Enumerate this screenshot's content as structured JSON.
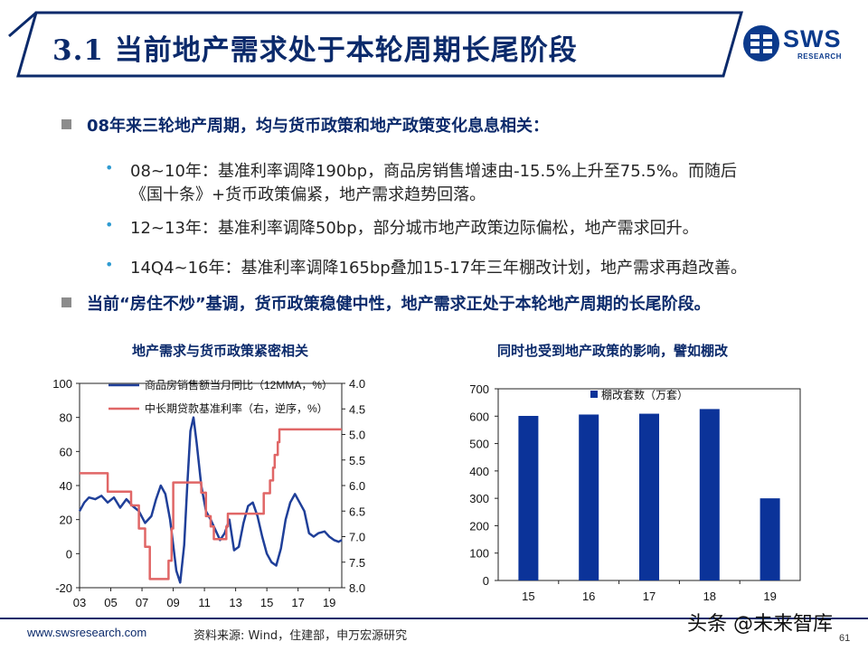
{
  "header": {
    "title": "3.1 当前地产需求处于本轮周期长尾阶段",
    "logo_text": "SWS",
    "logo_sub": "RESEARCH"
  },
  "bullets": {
    "b1": "08年来三轮地产周期，均与货币政策和地产政策变化息息相关：",
    "s1_line1": "08~10年：基准利率调降190bp，商品房销售增速由-15.5%上升至75.5%。而随后",
    "s1_line2": "《国十条》+货币政策偏紧，地产需求趋势回落。",
    "s2": "12~13年：基准利率调降50bp，部分城市地产政策边际偏松，地产需求回升。",
    "s3": "14Q4~16年：基准利率调降165bp叠加15-17年三年棚改计划，地产需求再趋改善。",
    "b2": "当前“房住不炒”基调，货币政策稳健中性，地产需求正处于本轮地产周期的长尾阶段。",
    "dot": "•"
  },
  "colors": {
    "navy": "#0b2a6b",
    "series_blue": "#1f3f99",
    "series_red": "#e06666",
    "bar": "#0b3399",
    "bullet_dot": "#2f9bd1"
  },
  "chart_data": [
    {
      "type": "line",
      "title": "地产需求与货币政策紧密相关",
      "x_tick_labels": [
        "03",
        "05",
        "07",
        "09",
        "11",
        "13",
        "15",
        "17",
        "19"
      ],
      "x_range": [
        2003,
        2019.8
      ],
      "left_axis": {
        "ylim": [
          -20,
          100
        ],
        "ticks": [
          "100",
          "80",
          "60",
          "40",
          "20",
          "0",
          "-20"
        ]
      },
      "right_axis": {
        "ylim": [
          4.0,
          8.0
        ],
        "inverted": true,
        "ticks": [
          "4.0",
          "4.5",
          "5.0",
          "5.5",
          "6.0",
          "6.5",
          "7.0",
          "7.5",
          "8.0"
        ]
      },
      "legend_position": "top",
      "series": [
        {
          "name": "商品房销售额当月同比（12MMA，%）",
          "axis": "left",
          "points": [
            [
              2003.0,
              25
            ],
            [
              2003.3,
              30
            ],
            [
              2003.6,
              33
            ],
            [
              2004.0,
              32
            ],
            [
              2004.4,
              34
            ],
            [
              2004.8,
              30
            ],
            [
              2005.2,
              33
            ],
            [
              2005.6,
              27
            ],
            [
              2006.0,
              32
            ],
            [
              2006.4,
              28
            ],
            [
              2006.8,
              25
            ],
            [
              2007.2,
              18
            ],
            [
              2007.6,
              22
            ],
            [
              2007.9,
              32
            ],
            [
              2008.2,
              40
            ],
            [
              2008.5,
              35
            ],
            [
              2008.8,
              20
            ],
            [
              2009.0,
              5
            ],
            [
              2009.2,
              -10
            ],
            [
              2009.45,
              -17
            ],
            [
              2009.7,
              5
            ],
            [
              2009.9,
              40
            ],
            [
              2010.1,
              72
            ],
            [
              2010.3,
              80
            ],
            [
              2010.5,
              65
            ],
            [
              2010.8,
              40
            ],
            [
              2011.1,
              25
            ],
            [
              2011.4,
              20
            ],
            [
              2011.7,
              14
            ],
            [
              2012.0,
              8
            ],
            [
              2012.3,
              12
            ],
            [
              2012.6,
              20
            ],
            [
              2012.9,
              2
            ],
            [
              2013.2,
              4
            ],
            [
              2013.5,
              18
            ],
            [
              2013.8,
              28
            ],
            [
              2014.1,
              30
            ],
            [
              2014.4,
              22
            ],
            [
              2014.7,
              10
            ],
            [
              2015.0,
              0
            ],
            [
              2015.3,
              -5
            ],
            [
              2015.6,
              -7
            ],
            [
              2015.9,
              3
            ],
            [
              2016.2,
              20
            ],
            [
              2016.5,
              30
            ],
            [
              2016.8,
              35
            ],
            [
              2017.1,
              30
            ],
            [
              2017.4,
              25
            ],
            [
              2017.7,
              12
            ],
            [
              2018.0,
              10
            ],
            [
              2018.3,
              12
            ],
            [
              2018.7,
              13
            ],
            [
              2019.0,
              10
            ],
            [
              2019.3,
              8
            ],
            [
              2019.6,
              7
            ],
            [
              2019.8,
              8
            ]
          ]
        },
        {
          "name": "中长期贷款基准利率（右，逆序，%）",
          "axis": "right",
          "points": [
            [
              2003.0,
              5.76
            ],
            [
              2004.8,
              5.76
            ],
            [
              2004.8,
              6.12
            ],
            [
              2006.3,
              6.12
            ],
            [
              2006.3,
              6.39
            ],
            [
              2006.8,
              6.39
            ],
            [
              2006.8,
              6.84
            ],
            [
              2007.2,
              6.84
            ],
            [
              2007.2,
              7.2
            ],
            [
              2007.5,
              7.2
            ],
            [
              2007.5,
              7.83
            ],
            [
              2008.7,
              7.83
            ],
            [
              2008.7,
              7.47
            ],
            [
              2008.9,
              7.47
            ],
            [
              2008.9,
              6.84
            ],
            [
              2009.0,
              6.84
            ],
            [
              2009.0,
              5.94
            ],
            [
              2010.8,
              5.94
            ],
            [
              2010.8,
              6.14
            ],
            [
              2011.1,
              6.14
            ],
            [
              2011.1,
              6.6
            ],
            [
              2011.4,
              6.6
            ],
            [
              2011.4,
              6.8
            ],
            [
              2011.6,
              6.8
            ],
            [
              2011.6,
              7.05
            ],
            [
              2012.4,
              7.05
            ],
            [
              2012.4,
              6.8
            ],
            [
              2012.5,
              6.8
            ],
            [
              2012.5,
              6.55
            ],
            [
              2014.8,
              6.55
            ],
            [
              2014.8,
              6.15
            ],
            [
              2015.2,
              6.15
            ],
            [
              2015.2,
              5.9
            ],
            [
              2015.4,
              5.9
            ],
            [
              2015.4,
              5.65
            ],
            [
              2015.5,
              5.65
            ],
            [
              2015.5,
              5.4
            ],
            [
              2015.7,
              5.4
            ],
            [
              2015.7,
              5.15
            ],
            [
              2015.8,
              5.15
            ],
            [
              2015.8,
              4.9
            ],
            [
              2019.8,
              4.9
            ]
          ]
        }
      ]
    },
    {
      "type": "bar",
      "title": "同时也受到地产政策的影响，譬如棚改",
      "categories": [
        "15",
        "16",
        "17",
        "18",
        "19"
      ],
      "ylim": [
        0,
        700
      ],
      "y_ticks": [
        "700",
        "600",
        "500",
        "400",
        "300",
        "200",
        "100",
        "0"
      ],
      "series": [
        {
          "name": "棚改套数（万套）",
          "values": [
            601,
            606,
            609,
            626,
            300
          ]
        }
      ],
      "legend_position": "top"
    }
  ],
  "footer": {
    "url": "www.swsresearch.com",
    "source": "资料来源: Wind，住建部，申万宏源研究",
    "watermark": "头条 @未来智库",
    "page": "61"
  }
}
